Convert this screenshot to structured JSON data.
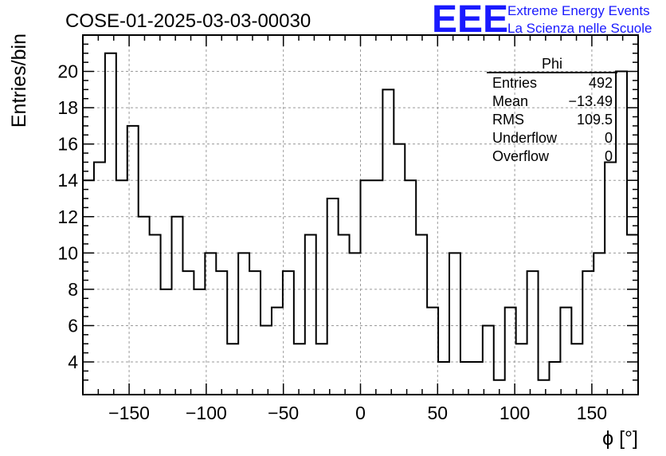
{
  "chart_data": {
    "type": "histogram",
    "title": "COSE-01-2025-03-03-00030",
    "xlabel": "ϕ [°]",
    "ylabel": "Entries/bin",
    "xlim": [
      -180,
      180
    ],
    "ylim": [
      2.2,
      22
    ],
    "bin_width": 7.2,
    "xticks": [
      -150,
      -100,
      -50,
      0,
      50,
      100,
      150
    ],
    "xtick_labels": [
      "−150",
      "−100",
      "−50",
      "0",
      "50",
      "100",
      "150"
    ],
    "yticks": [
      4,
      6,
      8,
      10,
      12,
      14,
      16,
      18,
      20
    ],
    "ytick_labels": [
      "4",
      "6",
      "8",
      "10",
      "12",
      "14",
      "16",
      "18",
      "20"
    ],
    "grid": true,
    "values": [
      14,
      15,
      21,
      14,
      17,
      12,
      11,
      8,
      12,
      9,
      8,
      10,
      9,
      5,
      10,
      9,
      6,
      7,
      9,
      5,
      11,
      5,
      13,
      11,
      10,
      14,
      14,
      19,
      16,
      14,
      11,
      7,
      4,
      10,
      4,
      4,
      6,
      3,
      7,
      5,
      9,
      3,
      4,
      7,
      5,
      9,
      10,
      15,
      20,
      11
    ],
    "line_color": "#000000"
  },
  "stats_box": {
    "name": "Phi",
    "rows": [
      {
        "label": "Entries",
        "value": "492"
      },
      {
        "label": "Mean",
        "value": "−13.49"
      },
      {
        "label": "RMS",
        "value": "109.5"
      },
      {
        "label": "Underflow",
        "value": "0"
      },
      {
        "label": "Overflow",
        "value": "0"
      }
    ]
  },
  "logo": {
    "mark": "EEE",
    "line1": "Extreme Energy Events",
    "line2": "La Scienza nelle Scuole",
    "color": "#1a1aff"
  }
}
